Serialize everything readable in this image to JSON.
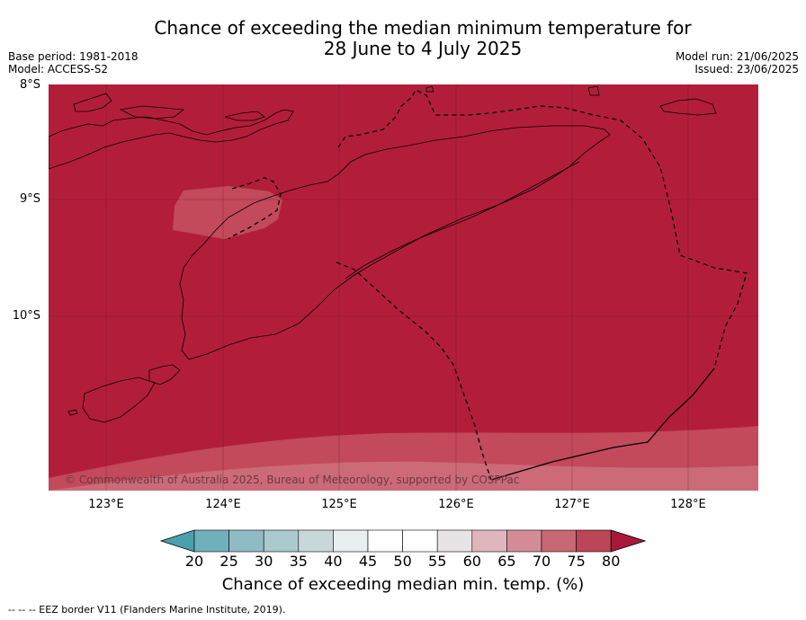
{
  "title": {
    "line1": "Chance of exceeding the median minimum temperature for",
    "line2": "28 June to 4 July 2025"
  },
  "meta": {
    "base_period": "Base period: 1981-2018",
    "model": "Model: ACCESS-S2",
    "model_run": "Model run: 21/06/2025",
    "issued": "Issued: 23/06/2025"
  },
  "map": {
    "lat_labels": [
      "8°S",
      "9°S",
      "10°S"
    ],
    "lon_labels": [
      "123°E",
      "124°E",
      "125°E",
      "126°E",
      "127°E",
      "128°E"
    ],
    "copyright": "© Commonwealth of Australia 2025, Bureau of Meteorology, supported by COSPPac",
    "colors": {
      "dominant_fill": "#b21e3a",
      "band_75_80": "#c24a5a",
      "band_70_75": "#cc6a78",
      "coastline": "#000000"
    }
  },
  "colorbar": {
    "tick_labels": [
      "20",
      "25",
      "30",
      "35",
      "40",
      "45",
      "50",
      "55",
      "60",
      "65",
      "70",
      "75",
      "80"
    ],
    "colors": [
      "#4aa0ad",
      "#6fb0bb",
      "#8fbcc4",
      "#aacace",
      "#c8d8da",
      "#e8eff1",
      "#ffffff",
      "#ffffff",
      "#e8e3e4",
      "#e0b6bd",
      "#d48d96",
      "#c86874",
      "#ba4657",
      "#a8183a"
    ],
    "title": "Chance of exceeding median min. temp. (%)"
  },
  "footnote": "--  --  -- EEZ border V11 (Flanders Marine Institute, 2019)."
}
